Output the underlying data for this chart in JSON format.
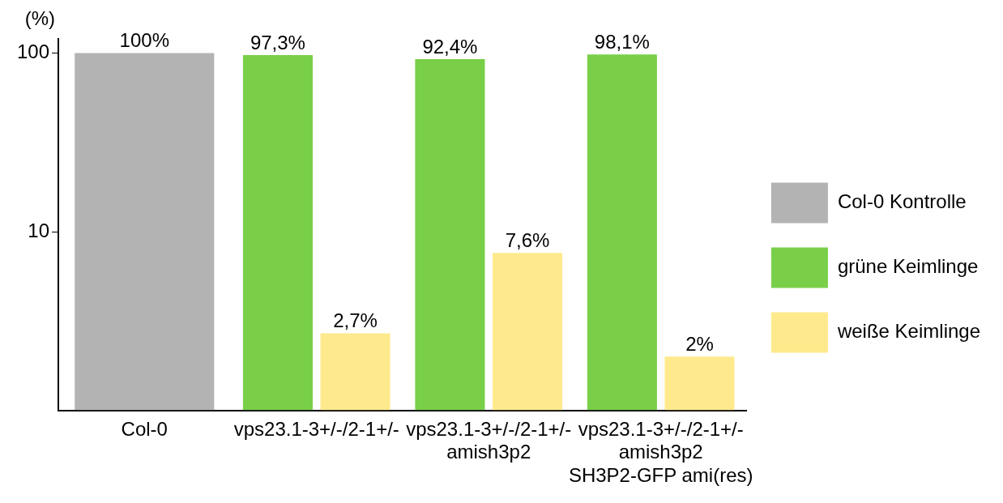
{
  "chart_data": {
    "type": "bar",
    "ylabel": "(%)",
    "categories": [
      "Col-0",
      "vps23.1-3+/-/2-1+/-",
      "vps23.1-3+/-/2-1+/-\namish3p2",
      "vps23.1-3+/-/2-1+/-\namish3p2\nSH3P2-GFP ami(res)"
    ],
    "series": [
      {
        "name": "Col-0 Kontrolle",
        "color": "#b3b3b3",
        "values": [
          100,
          null,
          null,
          null
        ],
        "value_labels": [
          "100%",
          null,
          null,
          null
        ]
      },
      {
        "name": "grüne Keimlinge",
        "color": "#79cf48",
        "values": [
          null,
          97.3,
          92.4,
          98.1
        ],
        "value_labels": [
          null,
          "97,3%",
          "92,4%",
          "98,1%"
        ]
      },
      {
        "name": "weiße Keimlinge",
        "color": "#feea8d",
        "values": [
          null,
          2.7,
          7.6,
          2
        ],
        "value_labels": [
          null,
          "2,7%",
          "7,6%",
          "2%"
        ]
      }
    ],
    "log": "y",
    "ylim": [
      1,
      120
    ],
    "yticks": [
      10,
      100
    ],
    "grid": false,
    "legend": "right"
  }
}
